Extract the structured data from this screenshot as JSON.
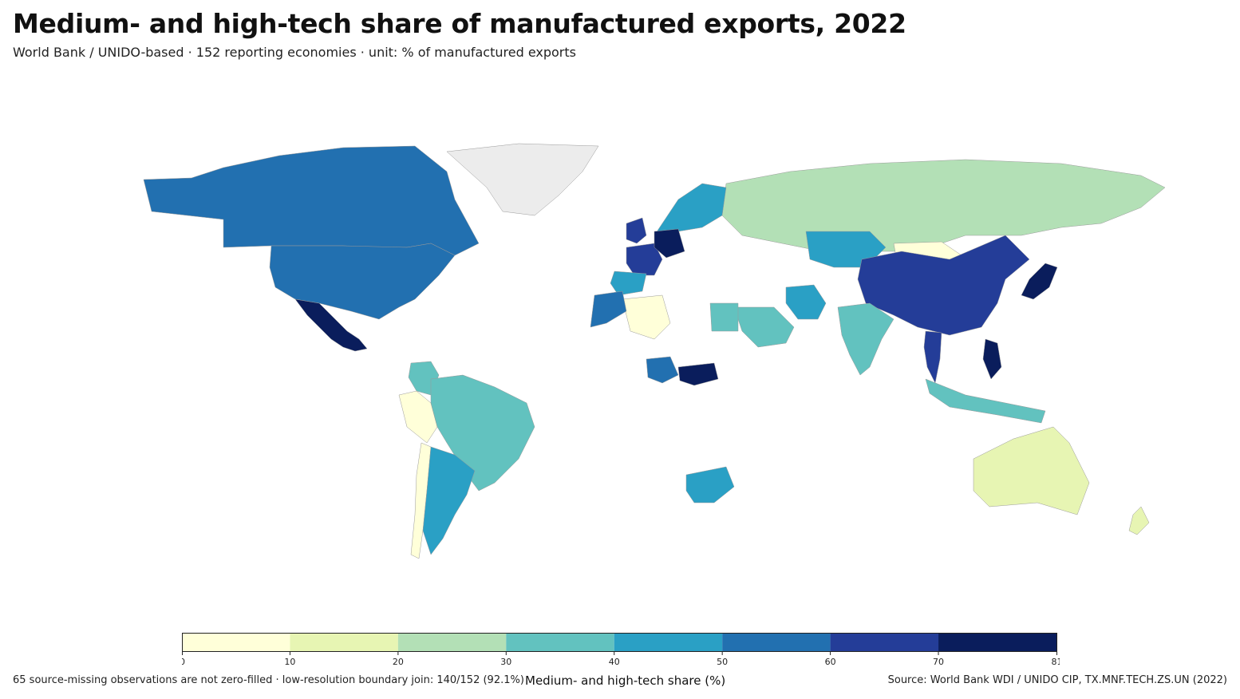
{
  "title": "Medium- and high-tech share of manufactured exports, 2022",
  "subtitle": "World Bank / UNIDO-based · 152 reporting economies · unit: % of manufactured exports",
  "footnote": "65 source-missing observations are not zero-filled · low-resolution boundary join: 140/152 (92.1%)",
  "source": "Source: World Bank WDI / UNIDO CIP, TX.MNF.TECH.ZS.UN (2022)",
  "colorbar": {
    "label": "Medium- and high-tech share (%)",
    "min": 0,
    "max": 81,
    "ticks": [
      "0",
      "10",
      "20",
      "30",
      "40",
      "50",
      "60",
      "70",
      "81"
    ],
    "bins": [
      {
        "from": 0,
        "to": 10,
        "color": "#ffffd9"
      },
      {
        "from": 10,
        "to": 20,
        "color": "#e7f5b3"
      },
      {
        "from": 20,
        "to": 30,
        "color": "#b3e0b6"
      },
      {
        "from": 30,
        "to": 40,
        "color": "#62c2bf"
      },
      {
        "from": 40,
        "to": 50,
        "color": "#2aa0c5"
      },
      {
        "from": 50,
        "to": 60,
        "color": "#2270b0"
      },
      {
        "from": 60,
        "to": 70,
        "color": "#243d98"
      },
      {
        "from": 70,
        "to": 81,
        "color": "#0a1d5c"
      }
    ],
    "missing_color": "#ececec"
  },
  "chart_data": {
    "type": "choropleth",
    "title": "Medium- and high-tech share of manufactured exports, 2022",
    "value_label": "Medium- and high-tech share (%)",
    "range": [
      0,
      81
    ],
    "regions": [
      {
        "name": "Canada",
        "bin": 5
      },
      {
        "name": "United States",
        "bin": 5
      },
      {
        "name": "Mexico",
        "bin": 7
      },
      {
        "name": "Greenland",
        "bin": null
      },
      {
        "name": "Brazil",
        "bin": 3
      },
      {
        "name": "Argentina",
        "bin": 4
      },
      {
        "name": "Chile",
        "bin": 0
      },
      {
        "name": "Peru",
        "bin": 0
      },
      {
        "name": "Colombia",
        "bin": 3
      },
      {
        "name": "Russia",
        "bin": 2
      },
      {
        "name": "China",
        "bin": 6
      },
      {
        "name": "Japan",
        "bin": 7
      },
      {
        "name": "India",
        "bin": 3
      },
      {
        "name": "Australia",
        "bin": 1
      },
      {
        "name": "Germany",
        "bin": 7
      },
      {
        "name": "France",
        "bin": 6
      },
      {
        "name": "United Kingdom",
        "bin": 6
      },
      {
        "name": "Spain",
        "bin": 4
      },
      {
        "name": "Nigeria",
        "bin": 5
      },
      {
        "name": "South Africa",
        "bin": 4
      },
      {
        "name": "Egypt",
        "bin": 3
      },
      {
        "name": "Saudi Arabia",
        "bin": 3
      },
      {
        "name": "Kazakhstan",
        "bin": 4
      },
      {
        "name": "Mongolia",
        "bin": 0
      },
      {
        "name": "Iran",
        "bin": 4
      },
      {
        "name": "Thailand",
        "bin": 6
      },
      {
        "name": "Philippines",
        "bin": 7
      },
      {
        "name": "Indonesia",
        "bin": 3
      },
      {
        "name": "Morocco",
        "bin": 5
      },
      {
        "name": "Algeria",
        "bin": 0
      },
      {
        "name": "Central African Rep.",
        "bin": 7
      },
      {
        "name": "New Zealand",
        "bin": 1
      },
      {
        "name": "Scandinavia",
        "bin": 4
      }
    ]
  }
}
